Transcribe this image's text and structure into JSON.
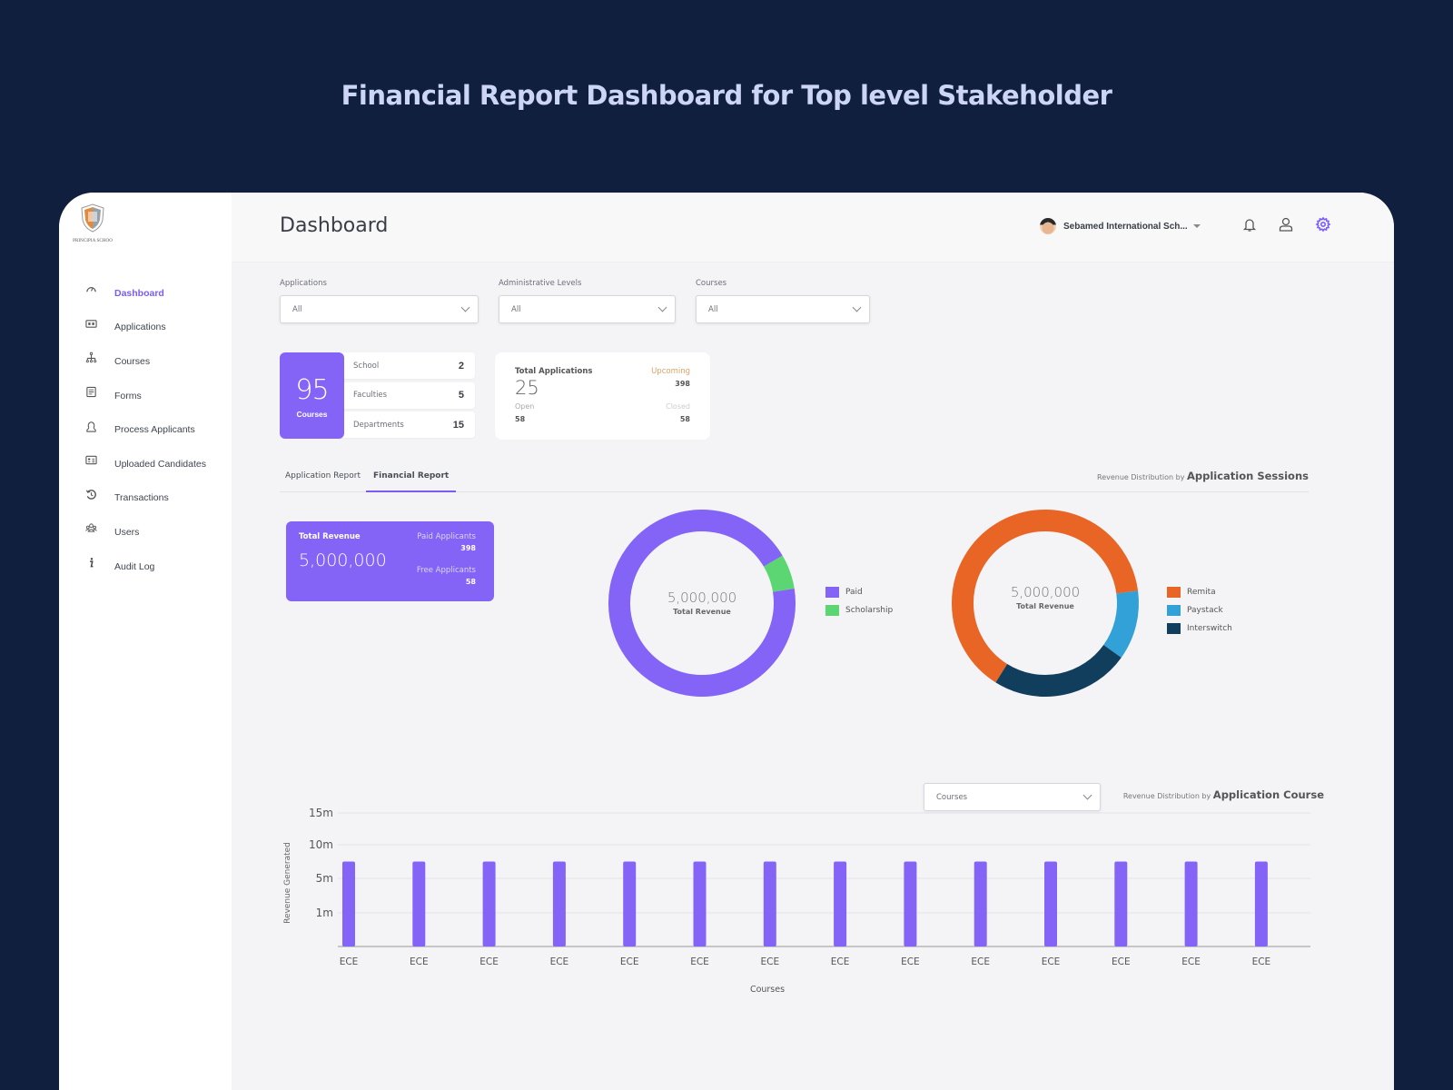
{
  "hero_title": "Financial Report Dashboard for Top level Stakeholder",
  "brand": {
    "logo_text": "PRINCIPIA SCHOO"
  },
  "sidebar": {
    "items": [
      {
        "label": "Dashboard",
        "icon": "gauge-icon",
        "active": true
      },
      {
        "label": "Applications",
        "icon": "id-card-icon"
      },
      {
        "label": "Courses",
        "icon": "hierarchy-icon"
      },
      {
        "label": "Forms",
        "icon": "form-icon"
      },
      {
        "label": "Process Applicants",
        "icon": "person-icon"
      },
      {
        "label": "Uploaded Candidates",
        "icon": "contact-card-icon"
      },
      {
        "label": "Transactions",
        "icon": "history-icon"
      },
      {
        "label": "Users",
        "icon": "users-icon"
      },
      {
        "label": "Audit Log",
        "icon": "info-icon"
      }
    ]
  },
  "header": {
    "title": "Dashboard",
    "org_name": "Sebamed International Sch...",
    "icons": [
      "bell-icon",
      "user-icon",
      "gear-icon"
    ],
    "accent": "#7a5cf5"
  },
  "filters": [
    {
      "label": "Applications",
      "value": "All"
    },
    {
      "label": "Administrative Levels",
      "value": "All"
    },
    {
      "label": "Courses",
      "value": "All"
    }
  ],
  "courses_stat": {
    "value": "95",
    "label": "Courses",
    "rows": [
      {
        "label": "School",
        "value": "2"
      },
      {
        "label": "Faculties",
        "value": "5"
      },
      {
        "label": "Departments",
        "value": "15"
      }
    ]
  },
  "applications_stat": {
    "title": "Total Applications",
    "value": "25",
    "open_label": "Open",
    "open_value": "58",
    "upcoming_label": "Upcoming",
    "upcoming_value": "398",
    "closed_label": "Closed",
    "closed_value": "58"
  },
  "tabs": [
    {
      "label": "Application Report",
      "active": false
    },
    {
      "label": "Financial Report",
      "active": true
    }
  ],
  "sessions_caption": {
    "prefix": "Revenue Distribution by",
    "emphasis": "Application Sessions"
  },
  "revenue_card": {
    "title": "Total Revenue",
    "value": "5,000,000",
    "paid_label": "Paid Applicants",
    "paid_value": "398",
    "free_label": "Free Applicants",
    "free_value": "58"
  },
  "course_filter": {
    "value": "Courses"
  },
  "course_caption": {
    "prefix": "Revenue Distribution by",
    "emphasis": "Application Course"
  },
  "chart_data": [
    {
      "type": "pie",
      "title": "Total Revenue",
      "center_value": "5,000,000",
      "center_label": "Total Revenue",
      "categories": [
        "Paid",
        "Scholarship"
      ],
      "values": [
        94,
        6
      ],
      "colors": [
        "#8364f7",
        "#5bd672"
      ],
      "legend_position": "right"
    },
    {
      "type": "pie",
      "title": "Total Revenue",
      "center_value": "5,000,000",
      "center_label": "Total Revenue",
      "categories": [
        "Remita",
        "Paystack",
        "Interswitch"
      ],
      "values": [
        64,
        12,
        24
      ],
      "colors": [
        "#e86526",
        "#31a1d8",
        "#113e5d"
      ],
      "legend_position": "right"
    },
    {
      "type": "bar",
      "title": "Revenue Distribution by Application Course",
      "xlabel": "Courses",
      "ylabel": "Revenue Generated",
      "categories": [
        "ECE",
        "ECE",
        "ECE",
        "ECE",
        "ECE",
        "ECE",
        "ECE",
        "ECE",
        "ECE",
        "ECE",
        "ECE",
        "ECE",
        "ECE",
        "ECE"
      ],
      "values": [
        7.5,
        7.5,
        7.5,
        7.5,
        7.5,
        7.5,
        7.5,
        7.5,
        7.5,
        7.5,
        7.5,
        7.5,
        7.5,
        7.5
      ],
      "y_ticks": [
        "1m",
        "5m",
        "10m",
        "15m"
      ],
      "color": "#8364f7",
      "grid": true
    }
  ]
}
